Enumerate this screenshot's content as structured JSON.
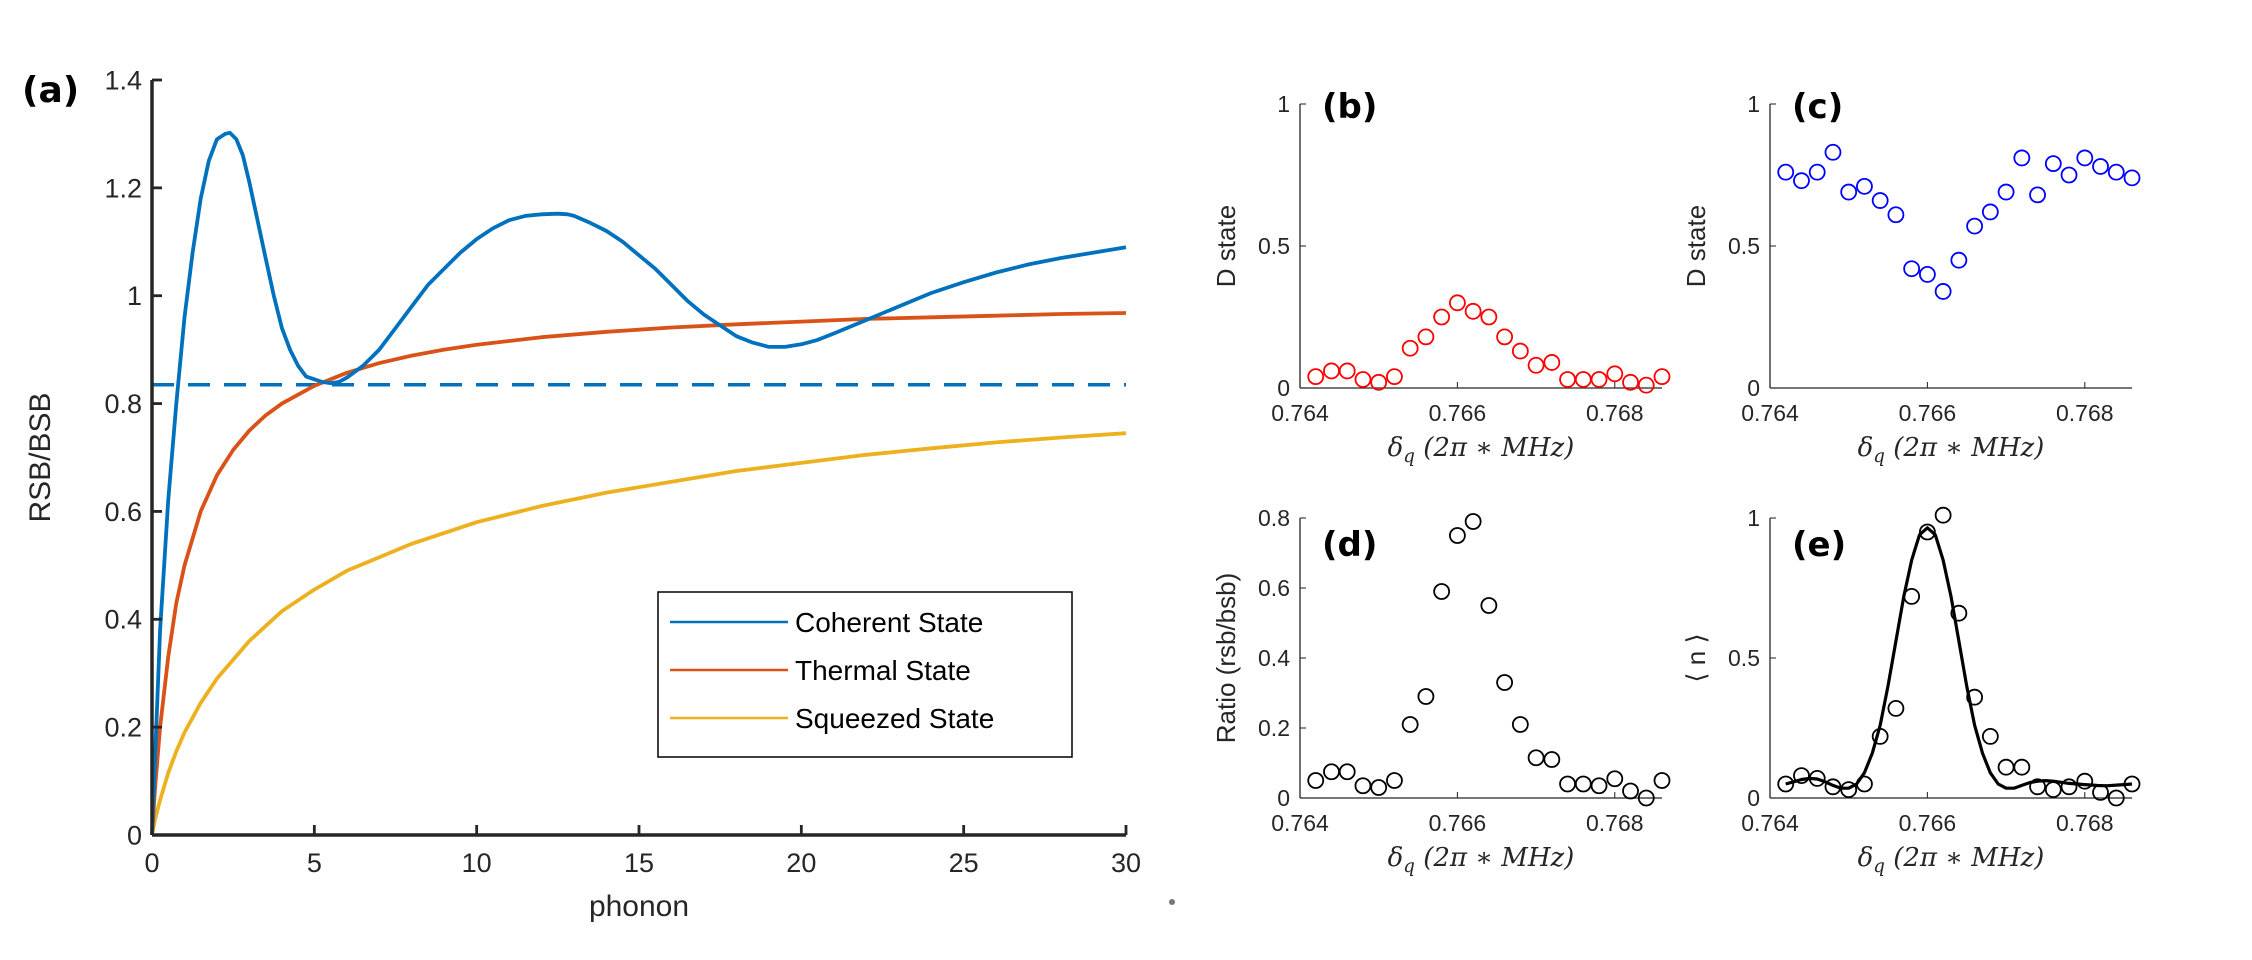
{
  "colors": {
    "coherent": "#0072BD",
    "thermal": "#D95319",
    "squeezed": "#EDB120",
    "red_markers": "#FF0000",
    "blue_markers": "#0000FF",
    "black": "#000000",
    "axis": "#262626"
  },
  "chart_data": [
    {
      "id": "a",
      "type": "line",
      "panel_label": "(a)",
      "xlabel": "phonon",
      "ylabel": "RSB/BSB",
      "xlim": [
        0,
        30
      ],
      "ylim": [
        0,
        1.4
      ],
      "xticks": [
        0,
        5,
        10,
        15,
        20,
        25,
        30
      ],
      "xtick_labels": [
        "0",
        "5",
        "10",
        "15",
        "20",
        "25",
        "30"
      ],
      "yticks": [
        0,
        0.2,
        0.4,
        0.6,
        0.8,
        1,
        1.2,
        1.4
      ],
      "ytick_labels": [
        "0",
        "0.2",
        "0.4",
        "0.6",
        "0.8",
        "1",
        "1.2",
        "1.4"
      ],
      "dashed_reference": {
        "y": 0.835,
        "x_range": [
          0,
          30
        ]
      },
      "series": [
        {
          "name": "Coherent State",
          "x": [
            0,
            0.25,
            0.5,
            0.75,
            1,
            1.25,
            1.5,
            1.75,
            2,
            2.25,
            2.4,
            2.6,
            2.8,
            3,
            3.25,
            3.5,
            3.75,
            4,
            4.25,
            4.5,
            4.75,
            5,
            5.25,
            5.5,
            5.75,
            6,
            6.5,
            7,
            7.5,
            8,
            8.5,
            9,
            9.5,
            10,
            10.5,
            11,
            11.5,
            12,
            12.5,
            12.8,
            13,
            13.5,
            14,
            14.5,
            15,
            15.5,
            16,
            16.5,
            17,
            17.5,
            18,
            18.5,
            19,
            19.5,
            20,
            20.5,
            21,
            22,
            23,
            24,
            25,
            26,
            27,
            28,
            29,
            30
          ],
          "values": [
            0,
            0.38,
            0.62,
            0.8,
            0.96,
            1.08,
            1.18,
            1.25,
            1.29,
            1.3,
            1.302,
            1.29,
            1.26,
            1.21,
            1.14,
            1.07,
            1.0,
            0.94,
            0.9,
            0.87,
            0.85,
            0.845,
            0.84,
            0.838,
            0.84,
            0.848,
            0.87,
            0.9,
            0.94,
            0.98,
            1.02,
            1.05,
            1.08,
            1.105,
            1.125,
            1.14,
            1.148,
            1.151,
            1.152,
            1.151,
            1.148,
            1.135,
            1.12,
            1.1,
            1.075,
            1.05,
            1.02,
            0.99,
            0.965,
            0.945,
            0.925,
            0.913,
            0.905,
            0.905,
            0.91,
            0.918,
            0.93,
            0.955,
            0.98,
            1.005,
            1.025,
            1.043,
            1.058,
            1.07,
            1.08,
            1.09
          ]
        },
        {
          "name": "Thermal State",
          "x": [
            0,
            0.1,
            0.25,
            0.5,
            0.75,
            1,
            1.5,
            2,
            2.5,
            3,
            3.5,
            4,
            5,
            6,
            7,
            8,
            9,
            10,
            12,
            14,
            16,
            18,
            20,
            22,
            24,
            26,
            28,
            30
          ],
          "values": [
            0,
            0.09,
            0.2,
            0.33,
            0.43,
            0.5,
            0.6,
            0.667,
            0.714,
            0.75,
            0.778,
            0.8,
            0.833,
            0.857,
            0.875,
            0.889,
            0.9,
            0.909,
            0.923,
            0.933,
            0.941,
            0.947,
            0.952,
            0.957,
            0.96,
            0.963,
            0.966,
            0.968
          ]
        },
        {
          "name": "Squeezed State",
          "x": [
            0,
            0.1,
            0.25,
            0.5,
            0.75,
            1,
            1.5,
            2,
            3,
            4,
            5,
            6,
            7,
            8,
            10,
            12,
            14,
            16,
            18,
            20,
            22,
            24,
            26,
            28,
            30
          ],
          "values": [
            0,
            0.03,
            0.065,
            0.115,
            0.155,
            0.19,
            0.245,
            0.29,
            0.36,
            0.415,
            0.455,
            0.49,
            0.515,
            0.54,
            0.58,
            0.61,
            0.635,
            0.655,
            0.675,
            0.69,
            0.705,
            0.717,
            0.728,
            0.737,
            0.745
          ]
        }
      ],
      "legend": {
        "position": "lower-right",
        "entries": [
          "Coherent State",
          "Thermal State",
          "Squeezed State"
        ]
      }
    },
    {
      "id": "b",
      "type": "scatter",
      "panel_label": "(b)",
      "ylabel": "D state",
      "xlabel_parts": {
        "base": "δ",
        "sub": "q",
        "rest": " (2π ∗ MHz)"
      },
      "xlim": [
        0.764,
        0.7686
      ],
      "ylim": [
        0,
        1
      ],
      "xticks": [
        0.764,
        0.766,
        0.768
      ],
      "xtick_labels": [
        "0.764",
        "0.766",
        "0.768"
      ],
      "yticks": [
        0,
        0.5,
        1
      ],
      "ytick_labels": [
        "0",
        "0.5",
        "1"
      ],
      "marker_color": "red",
      "x": [
        0.7642,
        0.7644,
        0.7646,
        0.7648,
        0.765,
        0.7652,
        0.7654,
        0.7656,
        0.7658,
        0.766,
        0.7662,
        0.7664,
        0.7666,
        0.7668,
        0.767,
        0.7672,
        0.7674,
        0.7676,
        0.7678,
        0.768,
        0.7682,
        0.7684,
        0.7686
      ],
      "values": [
        0.04,
        0.06,
        0.06,
        0.03,
        0.02,
        0.04,
        0.14,
        0.18,
        0.25,
        0.3,
        0.27,
        0.25,
        0.18,
        0.13,
        0.08,
        0.09,
        0.03,
        0.03,
        0.03,
        0.05,
        0.02,
        0.01,
        0.04
      ]
    },
    {
      "id": "c",
      "type": "scatter",
      "panel_label": "(c)",
      "ylabel": "D state",
      "xlabel_parts": {
        "base": "δ",
        "sub": "q",
        "rest": " (2π ∗ MHz)"
      },
      "xlim": [
        0.764,
        0.7686
      ],
      "ylim": [
        0,
        1
      ],
      "xticks": [
        0.764,
        0.766,
        0.768
      ],
      "xtick_labels": [
        "0.764",
        "0.766",
        "0.768"
      ],
      "yticks": [
        0,
        0.5,
        1
      ],
      "ytick_labels": [
        "0",
        "0.5",
        "1"
      ],
      "marker_color": "blue",
      "x": [
        0.7642,
        0.7644,
        0.7646,
        0.7648,
        0.765,
        0.7652,
        0.7654,
        0.7656,
        0.7658,
        0.766,
        0.7662,
        0.7664,
        0.7666,
        0.7668,
        0.767,
        0.7672,
        0.7674,
        0.7676,
        0.7678,
        0.768,
        0.7682,
        0.7684,
        0.7686
      ],
      "values": [
        0.76,
        0.73,
        0.76,
        0.83,
        0.69,
        0.71,
        0.66,
        0.61,
        0.42,
        0.4,
        0.34,
        0.45,
        0.57,
        0.62,
        0.69,
        0.81,
        0.68,
        0.79,
        0.75,
        0.81,
        0.78,
        0.76,
        0.74
      ]
    },
    {
      "id": "d",
      "type": "scatter",
      "panel_label": "(d)",
      "ylabel": "Ratio (rsb/bsb)",
      "xlabel_parts": {
        "base": "δ",
        "sub": "q",
        "rest": " (2π ∗ MHz)"
      },
      "xlim": [
        0.764,
        0.7686
      ],
      "ylim": [
        0,
        0.8
      ],
      "xticks": [
        0.764,
        0.766,
        0.768
      ],
      "xtick_labels": [
        "0.764",
        "0.766",
        "0.768"
      ],
      "yticks": [
        0,
        0.2,
        0.4,
        0.6,
        0.8
      ],
      "ytick_labels": [
        "0",
        "0.2",
        "0.4",
        "0.6",
        "0.8"
      ],
      "marker_color": "black",
      "x": [
        0.7642,
        0.7644,
        0.7646,
        0.7648,
        0.765,
        0.7652,
        0.7654,
        0.7656,
        0.7658,
        0.766,
        0.7662,
        0.7664,
        0.7666,
        0.7668,
        0.767,
        0.7672,
        0.7674,
        0.7676,
        0.7678,
        0.768,
        0.7682,
        0.7684,
        0.7686
      ],
      "values": [
        0.05,
        0.075,
        0.075,
        0.035,
        0.03,
        0.05,
        0.21,
        0.29,
        0.59,
        0.75,
        0.79,
        0.55,
        0.33,
        0.21,
        0.115,
        0.11,
        0.04,
        0.04,
        0.035,
        0.055,
        0.02,
        0.0,
        0.05
      ]
    },
    {
      "id": "e",
      "type": "scatter",
      "panel_label": "(e)",
      "ylabel": "⟨ n ⟩",
      "xlabel_parts": {
        "base": "δ",
        "sub": "q",
        "rest": " (2π ∗ MHz)"
      },
      "xlim": [
        0.764,
        0.7686
      ],
      "ylim": [
        0,
        1.0
      ],
      "xticks": [
        0.764,
        0.766,
        0.768
      ],
      "xtick_labels": [
        "0.764",
        "0.766",
        "0.768"
      ],
      "yticks": [
        0,
        0.5,
        1
      ],
      "ytick_labels": [
        "0",
        "0.5",
        "1"
      ],
      "marker_color": "black",
      "x": [
        0.7642,
        0.7644,
        0.7646,
        0.7648,
        0.765,
        0.7652,
        0.7654,
        0.7656,
        0.7658,
        0.766,
        0.7662,
        0.7664,
        0.7666,
        0.7668,
        0.767,
        0.7672,
        0.7674,
        0.7676,
        0.7678,
        0.768,
        0.7682,
        0.7684,
        0.7686
      ],
      "values": [
        0.05,
        0.08,
        0.07,
        0.04,
        0.03,
        0.05,
        0.22,
        0.32,
        0.72,
        0.95,
        1.01,
        0.66,
        0.36,
        0.22,
        0.11,
        0.11,
        0.04,
        0.03,
        0.04,
        0.06,
        0.02,
        0.0,
        0.05
      ],
      "fit": {
        "x": [
          0.7642,
          0.7643,
          0.7644,
          0.7645,
          0.7646,
          0.7647,
          0.7648,
          0.7649,
          0.765,
          0.7651,
          0.7652,
          0.7653,
          0.7654,
          0.7655,
          0.7656,
          0.7657,
          0.7658,
          0.7659,
          0.766,
          0.7661,
          0.7662,
          0.7663,
          0.7664,
          0.7665,
          0.7666,
          0.7667,
          0.7668,
          0.7669,
          0.767,
          0.7671,
          0.7672,
          0.7673,
          0.7674,
          0.7675,
          0.7676,
          0.7677,
          0.7678,
          0.7679,
          0.768,
          0.7681,
          0.7682,
          0.7683,
          0.7684,
          0.7685,
          0.7686
        ],
        "values": [
          0.05,
          0.058,
          0.066,
          0.07,
          0.068,
          0.058,
          0.045,
          0.035,
          0.035,
          0.05,
          0.09,
          0.16,
          0.26,
          0.4,
          0.56,
          0.72,
          0.85,
          0.94,
          0.965,
          0.94,
          0.85,
          0.72,
          0.56,
          0.4,
          0.26,
          0.16,
          0.09,
          0.05,
          0.035,
          0.035,
          0.045,
          0.055,
          0.06,
          0.062,
          0.06,
          0.056,
          0.052,
          0.05,
          0.048,
          0.046,
          0.044,
          0.044,
          0.046,
          0.048,
          0.05
        ]
      }
    }
  ]
}
